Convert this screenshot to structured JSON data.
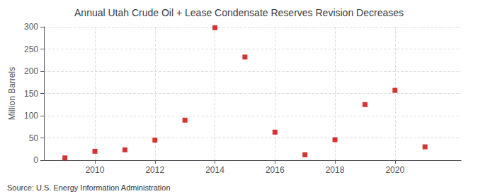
{
  "chart_data": {
    "type": "scatter",
    "title": "Annual Utah Crude Oil + Lease Condensate Reserves Revision Decreases",
    "ylabel": "Million Barrels",
    "annotations": [
      "Source: U.S. Energy Information Administration"
    ],
    "x": [
      2009,
      2010,
      2011,
      2012,
      2013,
      2014,
      2015,
      2016,
      2017,
      2018,
      2019,
      2020,
      2021
    ],
    "values": [
      5,
      20,
      23,
      45,
      90,
      298,
      232,
      63,
      12,
      46,
      125,
      157,
      30
    ],
    "color": "#cc0000",
    "marker": "square",
    "xlim": [
      2008.3,
      2022.2
    ],
    "xticks": [
      2010,
      2012,
      2014,
      2016,
      2018,
      2020
    ],
    "ylim": [
      0,
      300
    ],
    "yticks": [
      0,
      50,
      100,
      150,
      200,
      250,
      300
    ],
    "grid": true
  }
}
